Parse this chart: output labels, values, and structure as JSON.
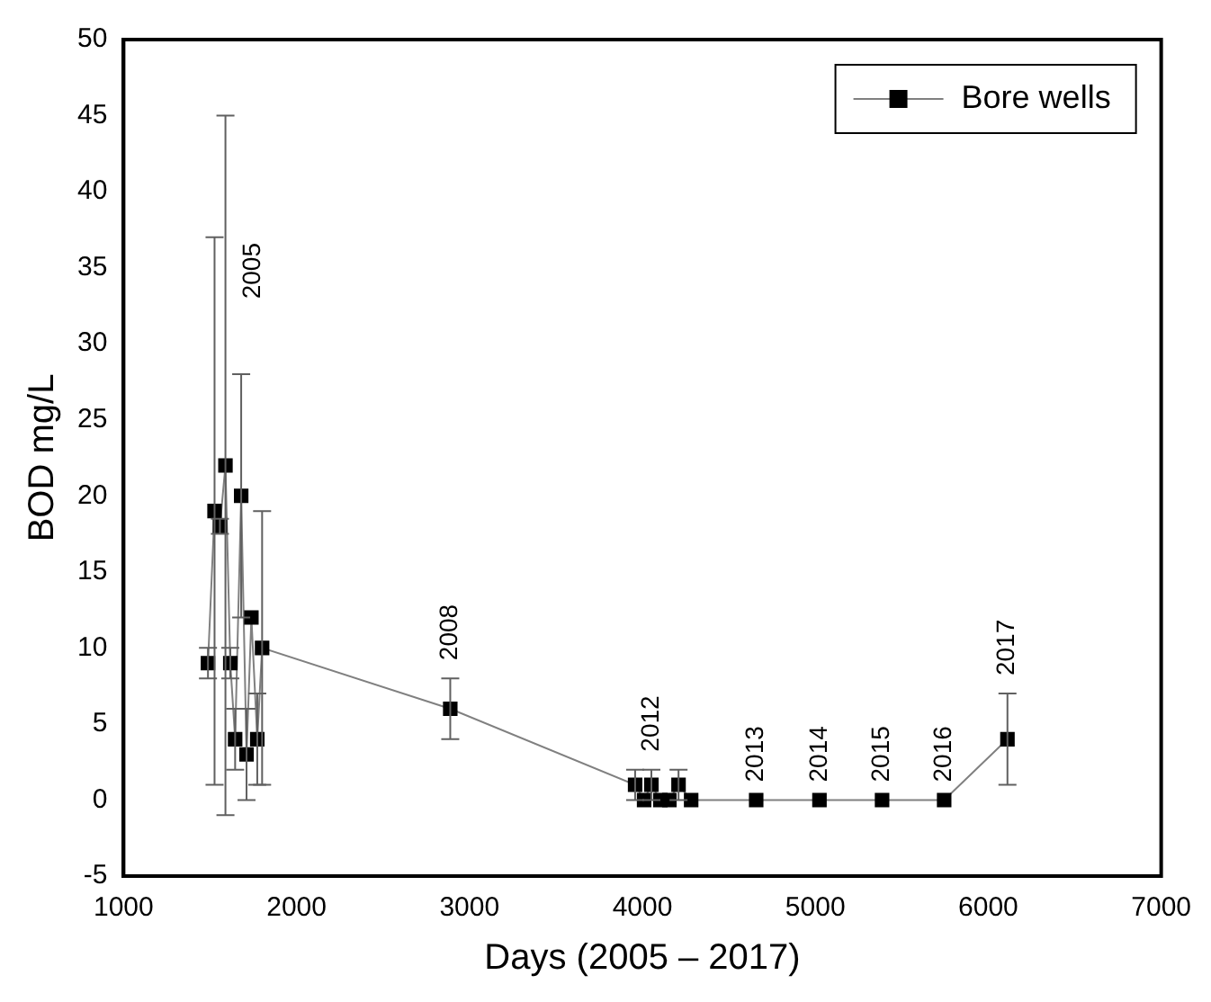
{
  "chart_data": {
    "type": "line",
    "xlabel": "Days (2005 – 2017)",
    "ylabel": "BOD mg/L",
    "xlim": [
      1000,
      7000
    ],
    "xticks": [
      1000,
      2000,
      3000,
      4000,
      5000,
      6000,
      7000
    ],
    "ylim": [
      -5,
      50
    ],
    "yticks": [
      -5,
      0,
      5,
      10,
      15,
      20,
      25,
      30,
      35,
      40,
      45,
      50
    ],
    "grid": false,
    "legend": "top right",
    "marker": "square",
    "line_style": "solid",
    "series": [
      {
        "name": "Bore wells",
        "color": "#000000",
        "x": [
          1488,
          1526,
          1557,
          1589,
          1617,
          1645,
          1680,
          1711,
          1739,
          1773,
          1801,
          2889,
          3958,
          4010,
          4052,
          4104,
          4156,
          4209,
          4282,
          4658,
          5024,
          5386,
          5745,
          6111
        ],
        "values": [
          9,
          19,
          18,
          22,
          9,
          4,
          20,
          3,
          12,
          4,
          10,
          6,
          1,
          0,
          1,
          0,
          0,
          1,
          0,
          0,
          0,
          0,
          0,
          4
        ],
        "errors": [
          1,
          18,
          0.5,
          23,
          1,
          2,
          8,
          3,
          null,
          3,
          9,
          2,
          1,
          null,
          1,
          null,
          null,
          1,
          null,
          null,
          null,
          null,
          null,
          3
        ]
      }
    ],
    "annotations": [
      "2005",
      {
        "text": "2008",
        "x": 2889,
        "y": 6
      },
      {
        "text": "2012",
        "x": 4052,
        "y": 1
      },
      {
        "text": "2013",
        "x": 4658,
        "y": 0
      },
      {
        "text": "2014",
        "x": 5024,
        "y": 0
      },
      {
        "text": "2015",
        "x": 5386,
        "y": 0
      },
      {
        "text": "2016",
        "x": 5745,
        "y": 0
      },
      {
        "text": "2017",
        "x": 6111,
        "y": 4
      }
    ]
  }
}
